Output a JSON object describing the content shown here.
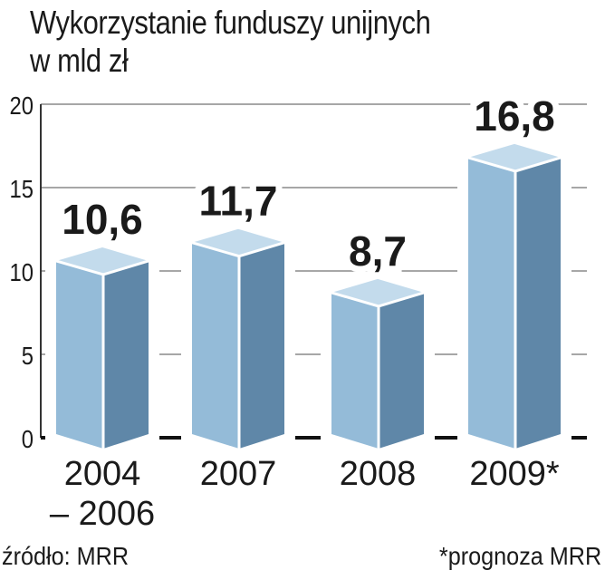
{
  "chart_data": {
    "type": "bar",
    "title": "Wykorzystanie funduszy unijnych",
    "subtitle": "w mld zł",
    "categories": [
      "2004\n– 2006",
      "2007",
      "2008",
      "2009*"
    ],
    "values": [
      10.6,
      11.7,
      8.7,
      16.8
    ],
    "value_labels": [
      "10,6",
      "11,7",
      "8,7",
      "16,8"
    ],
    "ylim": [
      0,
      20
    ],
    "yticks": [
      0,
      5,
      10,
      15,
      20
    ],
    "grid": true,
    "xlabel": "",
    "ylabel": ""
  },
  "source": "źródło: MRR",
  "note": "*prognoza MRR",
  "colors": {
    "front": "#94bbd8",
    "side": "#5f87a8",
    "top": "#c3dbec",
    "text": "#1a1a1a",
    "grid": "#8a8a8a"
  }
}
